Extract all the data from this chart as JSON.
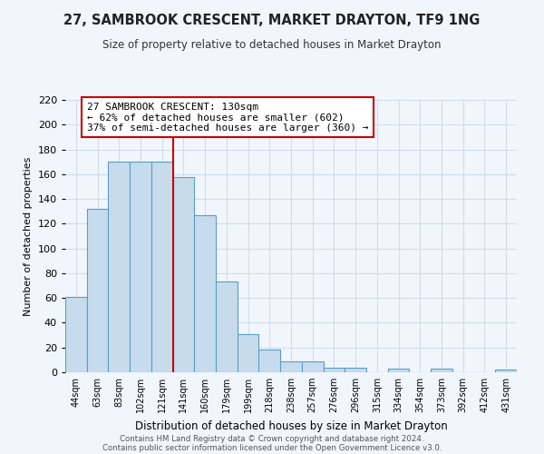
{
  "title": "27, SAMBROOK CRESCENT, MARKET DRAYTON, TF9 1NG",
  "subtitle": "Size of property relative to detached houses in Market Drayton",
  "xlabel": "Distribution of detached houses by size in Market Drayton",
  "ylabel": "Number of detached properties",
  "bar_labels": [
    "44sqm",
    "63sqm",
    "83sqm",
    "102sqm",
    "121sqm",
    "141sqm",
    "160sqm",
    "179sqm",
    "199sqm",
    "218sqm",
    "238sqm",
    "257sqm",
    "276sqm",
    "296sqm",
    "315sqm",
    "334sqm",
    "354sqm",
    "373sqm",
    "392sqm",
    "412sqm",
    "431sqm"
  ],
  "bar_values": [
    61,
    132,
    170,
    170,
    170,
    158,
    127,
    73,
    31,
    18,
    9,
    9,
    4,
    4,
    0,
    3,
    0,
    3,
    0,
    0,
    2
  ],
  "bar_color": "#c6dcec",
  "bar_edge_color": "#5b9dc8",
  "vline_color": "#cc0000",
  "annotation_title": "27 SAMBROOK CRESCENT: 130sqm",
  "annotation_line1": "← 62% of detached houses are smaller (602)",
  "annotation_line2": "37% of semi-detached houses are larger (360) →",
  "annotation_box_color": "white",
  "annotation_box_edge": "#cc0000",
  "ylim": [
    0,
    220
  ],
  "yticks": [
    0,
    20,
    40,
    60,
    80,
    100,
    120,
    140,
    160,
    180,
    200,
    220
  ],
  "footer1": "Contains HM Land Registry data © Crown copyright and database right 2024.",
  "footer2": "Contains public sector information licensed under the Open Government Licence v3.0.",
  "bg_color": "#f0f6fc",
  "grid_color": "#d0dde8"
}
